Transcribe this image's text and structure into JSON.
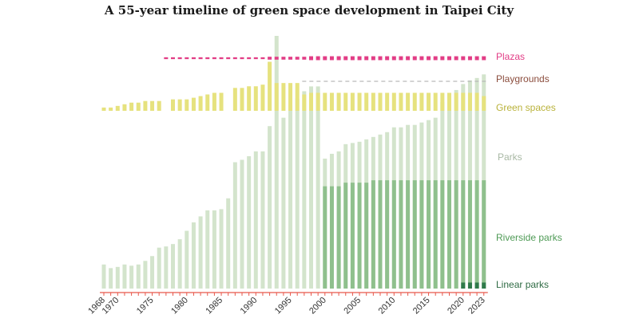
{
  "chart_data": {
    "type": "bar",
    "title": "A 55-year timeline of green space development in Taipei City",
    "x_tick_labels": [
      "1968",
      "1970",
      "1975",
      "1980",
      "1985",
      "1990",
      "1995",
      "2000",
      "2005",
      "2010",
      "2015",
      "2020",
      "2023"
    ],
    "years": [
      1968,
      1969,
      1970,
      1971,
      1972,
      1973,
      1974,
      1975,
      1976,
      1977,
      1978,
      1979,
      1980,
      1981,
      1982,
      1983,
      1984,
      1985,
      1986,
      1987,
      1988,
      1989,
      1990,
      1991,
      1992,
      1993,
      1994,
      1995,
      1996,
      1997,
      1998,
      1999,
      2000,
      2001,
      2002,
      2003,
      2004,
      2005,
      2006,
      2007,
      2008,
      2009,
      2010,
      2011,
      2012,
      2013,
      2014,
      2015,
      2016,
      2017,
      2018,
      2019,
      2020,
      2021,
      2022,
      2023
    ],
    "colors": {
      "parks": "#d3e4cc",
      "riverside_parks": "#8fc08d",
      "linear_parks": "#2f7a4a",
      "green_spaces": "#e6e27e",
      "playgrounds": "#b9b9b9",
      "plazas": "#e23d86",
      "axis": "#e8574a"
    },
    "main_panel": {
      "ylim": [
        0,
        210
      ],
      "series": [
        {
          "name": "Parks",
          "key": "parks",
          "values": [
            20,
            17,
            18,
            20,
            19,
            20,
            23,
            27,
            34,
            35,
            37,
            41,
            48,
            55,
            60,
            65,
            65,
            66,
            75,
            105,
            107,
            110,
            114,
            114,
            135,
            210,
            142,
            152,
            158,
            164,
            168,
            168,
            108,
            112,
            114,
            120,
            121,
            122,
            124,
            126,
            128,
            130,
            134,
            134,
            136,
            136,
            138,
            140,
            142,
            155,
            155,
            165,
            170,
            173,
            175,
            178
          ]
        },
        {
          "name": "Riverside parks",
          "key": "riverside_parks",
          "values": [
            0,
            0,
            0,
            0,
            0,
            0,
            0,
            0,
            0,
            0,
            0,
            0,
            0,
            0,
            0,
            0,
            0,
            0,
            0,
            0,
            0,
            0,
            0,
            0,
            0,
            0,
            0,
            0,
            0,
            0,
            0,
            0,
            85,
            85,
            85,
            88,
            88,
            88,
            88,
            90,
            90,
            90,
            90,
            90,
            90,
            90,
            90,
            90,
            90,
            90,
            90,
            90,
            90,
            90,
            90,
            90
          ]
        },
        {
          "name": "Linear parks",
          "key": "linear_parks",
          "values": [
            0,
            0,
            0,
            0,
            0,
            0,
            0,
            0,
            0,
            0,
            0,
            0,
            0,
            0,
            0,
            0,
            0,
            0,
            0,
            0,
            0,
            0,
            0,
            0,
            0,
            0,
            0,
            0,
            0,
            0,
            0,
            0,
            0,
            0,
            0,
            0,
            0,
            0,
            0,
            0,
            0,
            0,
            0,
            0,
            0,
            0,
            0,
            0,
            0,
            0,
            0,
            0,
            5,
            5,
            5,
            5
          ]
        }
      ]
    },
    "green_spaces_panel": {
      "ylim": [
        0,
        10
      ],
      "name": "Green spaces",
      "key": "green_spaces",
      "values": [
        1,
        1,
        1.5,
        2,
        2.5,
        2.5,
        3,
        3,
        3,
        0,
        3.5,
        3.5,
        3.5,
        4,
        4.5,
        5,
        5.5,
        5.5,
        0,
        7,
        7,
        7.5,
        7.5,
        8,
        15,
        8.5,
        8.5,
        8.5,
        8.5,
        5,
        5.5,
        5.5,
        5.5,
        5.5,
        5.5,
        5.5,
        5.5,
        5.5,
        5.5,
        5.5,
        5.5,
        5.5,
        5.5,
        5.5,
        5.5,
        5.5,
        5.5,
        5.5,
        5.5,
        5.5,
        5.5,
        5.5,
        5.5,
        5.5,
        5.5,
        4.5
      ]
    },
    "playgrounds": {
      "name": "Playgrounds",
      "key": "playgrounds",
      "start_year": 1997,
      "end_year": 2023
    },
    "plazas": {
      "name": "Plazas",
      "key": "plazas",
      "start_year": 1977,
      "end_year": 2023,
      "values": [
        1,
        1,
        1,
        1,
        1,
        1,
        1,
        1,
        1,
        1,
        1,
        1,
        1,
        1,
        1,
        2,
        2,
        2,
        2,
        2,
        2,
        3,
        3,
        3,
        3,
        3,
        3,
        3,
        3,
        3,
        3,
        3,
        3,
        3,
        3,
        3,
        3,
        3,
        3,
        3,
        3,
        3,
        3,
        3,
        3,
        3,
        3
      ]
    },
    "labels": [
      "Plazas",
      "Playgrounds",
      "Green spaces",
      "Parks",
      "Riverside parks",
      "Linear parks"
    ]
  }
}
